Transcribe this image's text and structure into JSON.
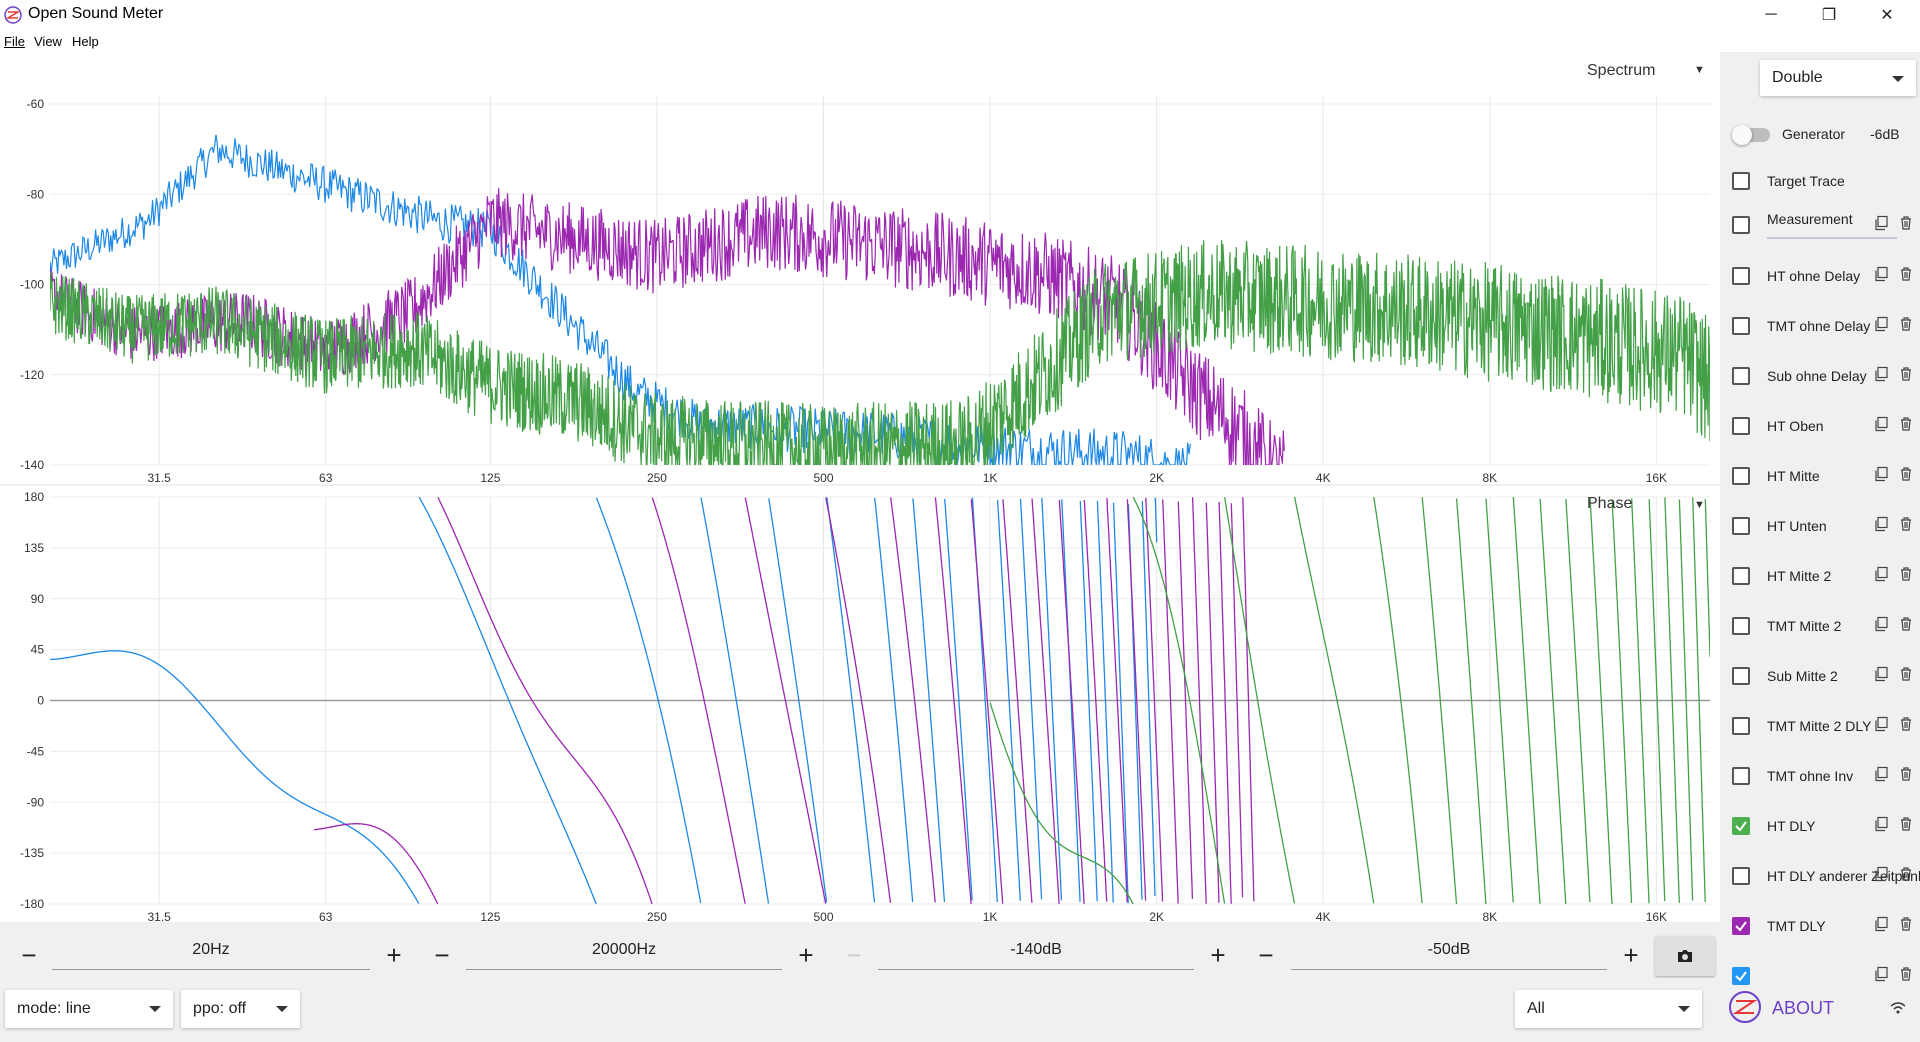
{
  "window": {
    "title": "Open Sound Meter",
    "minimize": "─",
    "maximize": "❐",
    "close": "✕"
  },
  "menu": {
    "file": "File",
    "view": "View",
    "help": "Help"
  },
  "spectrum": {
    "title": "Spectrum",
    "y_ticks": [
      "-60",
      "-80",
      "-100",
      "-120",
      "-140"
    ],
    "x_ticks": [
      "31.5",
      "63",
      "125",
      "250",
      "500",
      "1K",
      "2K",
      "4K",
      "8K",
      "16K"
    ]
  },
  "phase": {
    "title": "Phase",
    "y_ticks": [
      "180",
      "135",
      "90",
      "45",
      "0",
      "-45",
      "-90",
      "-135",
      "-180"
    ],
    "x_ticks": [
      "31.5",
      "63",
      "125",
      "250",
      "500",
      "1K",
      "2K",
      "4K",
      "8K",
      "16K"
    ]
  },
  "controls": {
    "freq_min": "20Hz",
    "freq_max": "20000Hz",
    "level_min": "-140dB",
    "level_max": "-50dB",
    "minus": "−",
    "plus": "+",
    "mode": "mode: line",
    "ppo": "ppo: off",
    "filter": "All"
  },
  "sidebar": {
    "layout": "Double",
    "generator_label": "Generator",
    "generator_level": "-6dB",
    "generator_on": false,
    "measurements": [
      {
        "label": "Target Trace",
        "checked": false,
        "color": "",
        "actions": false
      },
      {
        "label": "Measurement",
        "checked": false,
        "color": "",
        "actions": true
      },
      {
        "label": "HT ohne Delay",
        "checked": false,
        "color": "",
        "actions": true
      },
      {
        "label": "TMT ohne Delay",
        "checked": false,
        "color": "",
        "actions": true
      },
      {
        "label": "Sub ohne Delay",
        "checked": false,
        "color": "",
        "actions": true
      },
      {
        "label": "HT Oben",
        "checked": false,
        "color": "",
        "actions": true
      },
      {
        "label": "HT Mitte",
        "checked": false,
        "color": "",
        "actions": true
      },
      {
        "label": "HT Unten",
        "checked": false,
        "color": "",
        "actions": true
      },
      {
        "label": "HT Mitte 2",
        "checked": false,
        "color": "",
        "actions": true
      },
      {
        "label": "TMT Mitte 2",
        "checked": false,
        "color": "",
        "actions": true
      },
      {
        "label": "Sub Mitte 2",
        "checked": false,
        "color": "",
        "actions": true
      },
      {
        "label": "TMT Mitte 2 DLY",
        "checked": false,
        "color": "",
        "actions": true
      },
      {
        "label": "TMT ohne Inv",
        "checked": false,
        "color": "",
        "actions": true
      },
      {
        "label": "HT DLY",
        "checked": true,
        "color": "#4caf50",
        "actions": true
      },
      {
        "label": "HT DLY anderer Zeitpunkt",
        "checked": false,
        "color": "",
        "actions": true
      },
      {
        "label": "TMT DLY",
        "checked": true,
        "color": "#9c27b0",
        "actions": true
      },
      {
        "label": "",
        "checked": true,
        "color": "#2196f3",
        "actions": true
      }
    ],
    "about": "ABOUT"
  },
  "colors": {
    "green": "#43a047",
    "purple": "#9c27b0",
    "blue": "#1e88e5",
    "accent": "#6e40c9"
  }
}
